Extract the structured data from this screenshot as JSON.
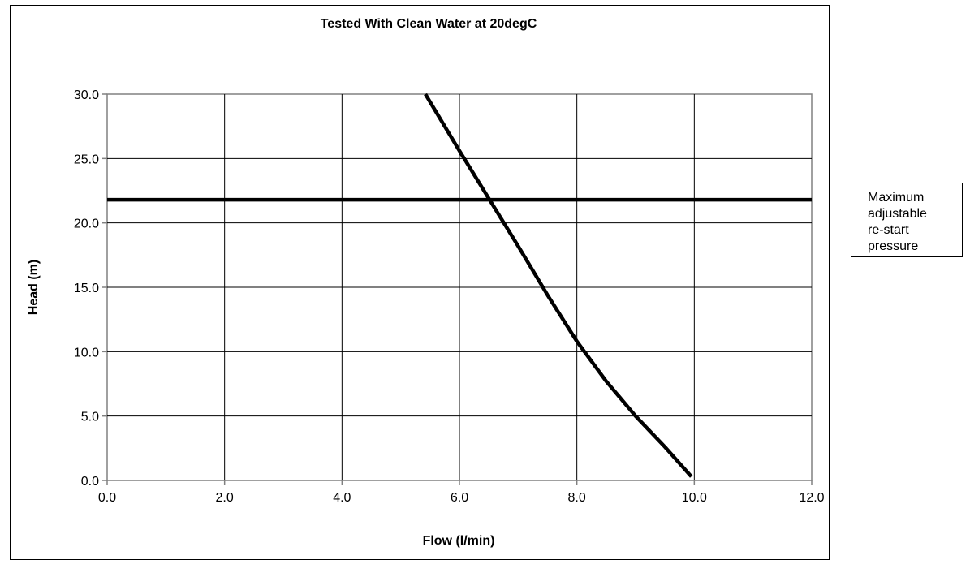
{
  "chart_data": {
    "type": "line",
    "title": "Tested With Clean Water at 20degC",
    "xlabel": "Flow (l/min)",
    "ylabel": "Head (m)",
    "xlim": [
      0,
      12
    ],
    "ylim": [
      0,
      30
    ],
    "x_ticks": [
      "0.0",
      "2.0",
      "4.0",
      "6.0",
      "8.0",
      "10.0",
      "12.0"
    ],
    "y_ticks": [
      "0.0",
      "5.0",
      "10.0",
      "15.0",
      "20.0",
      "25.0",
      "30.0"
    ],
    "grid": true,
    "legend_placement": "right",
    "series": [
      {
        "x": [
          5.42,
          6.0,
          6.5,
          7.0,
          7.5,
          8.0,
          8.5,
          9.0,
          9.5,
          9.95
        ],
        "y": [
          30.0,
          25.6,
          21.9,
          18.2,
          14.4,
          10.8,
          7.7,
          5.0,
          2.6,
          0.3
        ],
        "color": "#000000"
      },
      {
        "x": [
          0.0,
          12.0
        ],
        "y": [
          21.8,
          21.8
        ],
        "color": "#000000"
      }
    ],
    "legend": {
      "lines": [
        "Maximum",
        "adjustable",
        "re-start",
        "pressure"
      ]
    }
  }
}
